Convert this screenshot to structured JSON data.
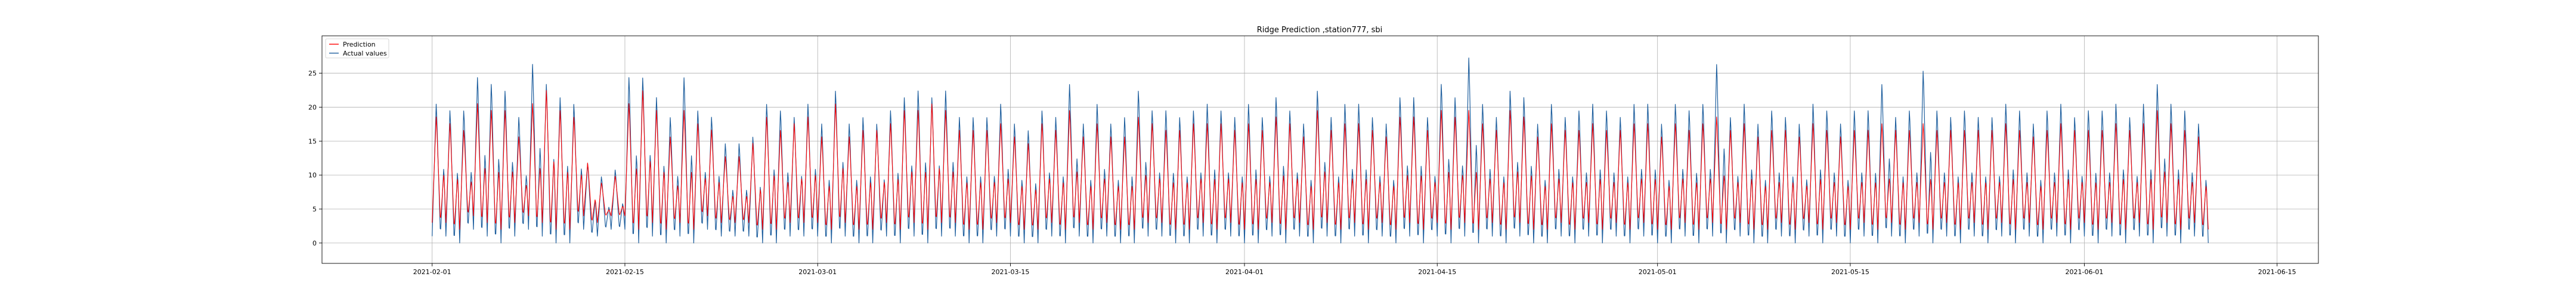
{
  "chart_data": {
    "type": "line",
    "title": "Ridge Prediction ,station777, sbi",
    "xlabel": "",
    "ylabel": "",
    "x_range": [
      "2021-01-24",
      "2021-06-18"
    ],
    "ylim": [
      -3,
      30.5
    ],
    "grid": true,
    "legend_placement": "top-left",
    "x_tick_labels": [
      "2021-02-01",
      "2021-02-15",
      "2021-03-01",
      "2021-03-15",
      "2021-04-01",
      "2021-04-15",
      "2021-05-01",
      "2021-05-15",
      "2021-06-01",
      "2021-06-15"
    ],
    "y_tick_labels": [
      "0",
      "5",
      "10",
      "15",
      "20",
      "25"
    ],
    "data_start": "2021-02-01",
    "data_end": "2021-06-10",
    "series": [
      {
        "name": "Prediction",
        "color": "#ff0000",
        "daily_high": [
          19,
          18,
          17,
          21,
          20,
          20,
          16,
          21,
          23,
          20,
          19,
          12,
          9,
          10,
          21,
          23,
          20,
          16,
          20,
          18,
          17,
          13,
          13,
          15,
          19,
          17,
          18,
          19,
          16,
          21,
          16,
          17,
          17,
          18,
          20,
          20,
          21,
          20,
          17,
          17,
          17,
          18,
          16,
          15,
          18,
          17,
          20,
          16,
          18,
          16,
          16,
          19,
          18,
          17,
          17,
          18,
          18,
          18,
          17,
          18,
          17,
          19,
          18,
          16,
          20,
          17,
          18,
          18,
          17,
          16,
          19,
          19,
          17,
          20,
          19,
          20,
          18,
          17,
          20,
          19,
          16,
          18,
          17,
          17,
          18,
          17,
          17,
          18,
          18,
          16,
          18,
          17,
          18,
          19,
          17,
          18,
          16,
          17,
          17,
          16,
          18,
          17,
          16,
          17,
          17,
          18,
          17,
          17,
          18,
          17,
          17,
          17,
          17,
          17,
          18,
          17,
          16,
          17,
          18,
          17,
          17,
          17,
          18,
          17,
          18,
          20,
          18,
          17,
          16,
          17
        ],
        "daily_low": [
          3,
          2,
          4,
          3,
          2,
          3,
          4,
          3,
          2,
          2,
          4,
          3,
          4,
          4,
          2,
          3,
          2,
          3,
          2,
          4,
          3,
          3,
          3,
          2,
          2,
          3,
          3,
          3,
          2,
          3,
          2,
          2,
          3,
          2,
          3,
          2,
          3,
          3,
          2,
          2,
          3,
          3,
          2,
          2,
          3,
          2,
          3,
          2,
          3,
          2,
          2,
          3,
          3,
          2,
          2,
          3,
          2,
          3,
          2,
          2,
          3,
          2,
          3,
          2,
          3,
          2,
          3,
          2,
          3,
          2,
          3,
          2,
          3,
          2,
          3,
          2,
          3,
          2,
          3,
          2,
          2,
          3,
          2,
          3,
          2,
          3,
          2,
          3,
          2,
          2,
          3,
          2,
          3,
          2,
          3,
          2,
          2,
          3,
          2,
          3,
          2,
          3,
          2,
          3,
          2,
          3,
          2,
          3,
          2,
          3,
          2,
          3,
          2,
          3,
          2,
          3,
          2,
          3,
          2,
          3,
          2,
          3,
          2,
          3,
          2,
          3,
          2,
          3,
          2,
          3
        ]
      },
      {
        "name": "Actual values",
        "color": "#1f5f9e",
        "daily_high": [
          21,
          20,
          20,
          25,
          24,
          23,
          19,
          27,
          24,
          22,
          21,
          12,
          10,
          11,
          25,
          25,
          22,
          19,
          25,
          20,
          19,
          15,
          15,
          16,
          21,
          20,
          19,
          21,
          18,
          23,
          18,
          19,
          18,
          20,
          22,
          23,
          22,
          23,
          19,
          19,
          19,
          21,
          18,
          17,
          20,
          19,
          24,
          18,
          21,
          18,
          19,
          23,
          20,
          20,
          19,
          20,
          21,
          20,
          19,
          21,
          19,
          22,
          20,
          18,
          23,
          19,
          21,
          21,
          19,
          18,
          22,
          22,
          19,
          24,
          22,
          28,
          21,
          19,
          23,
          22,
          18,
          21,
          19,
          20,
          21,
          20,
          19,
          21,
          21,
          18,
          21,
          20,
          21,
          27,
          19,
          21,
          18,
          20,
          19,
          18,
          21,
          20,
          18,
          20,
          20,
          24,
          19,
          20,
          26,
          20,
          19,
          20,
          19,
          19,
          21,
          20,
          18,
          20,
          21,
          19,
          20,
          20,
          21,
          19,
          21,
          24,
          21,
          20,
          18,
          20
        ],
        "daily_low": [
          1,
          0,
          2,
          1,
          0,
          1,
          2,
          1,
          0,
          0,
          2,
          1,
          2,
          2,
          0,
          1,
          0,
          1,
          0,
          2,
          1,
          1,
          1,
          0,
          0,
          1,
          1,
          1,
          0,
          1,
          0,
          0,
          1,
          0,
          1,
          0,
          1,
          1,
          0,
          0,
          1,
          1,
          0,
          0,
          1,
          0,
          1,
          0,
          1,
          0,
          0,
          1,
          1,
          0,
          0,
          1,
          0,
          1,
          0,
          0,
          1,
          0,
          1,
          0,
          1,
          0,
          1,
          0,
          1,
          0,
          1,
          0,
          1,
          0,
          1,
          0,
          1,
          0,
          1,
          0,
          0,
          1,
          0,
          1,
          0,
          1,
          0,
          1,
          0,
          0,
          1,
          0,
          1,
          0,
          1,
          0,
          0,
          1,
          0,
          1,
          0,
          1,
          0,
          1,
          0,
          1,
          0,
          1,
          0,
          1,
          0,
          1,
          0,
          1,
          0,
          1,
          0,
          1,
          0,
          1,
          0,
          1,
          0,
          1,
          0,
          1,
          0,
          1,
          0,
          1
        ]
      }
    ]
  }
}
